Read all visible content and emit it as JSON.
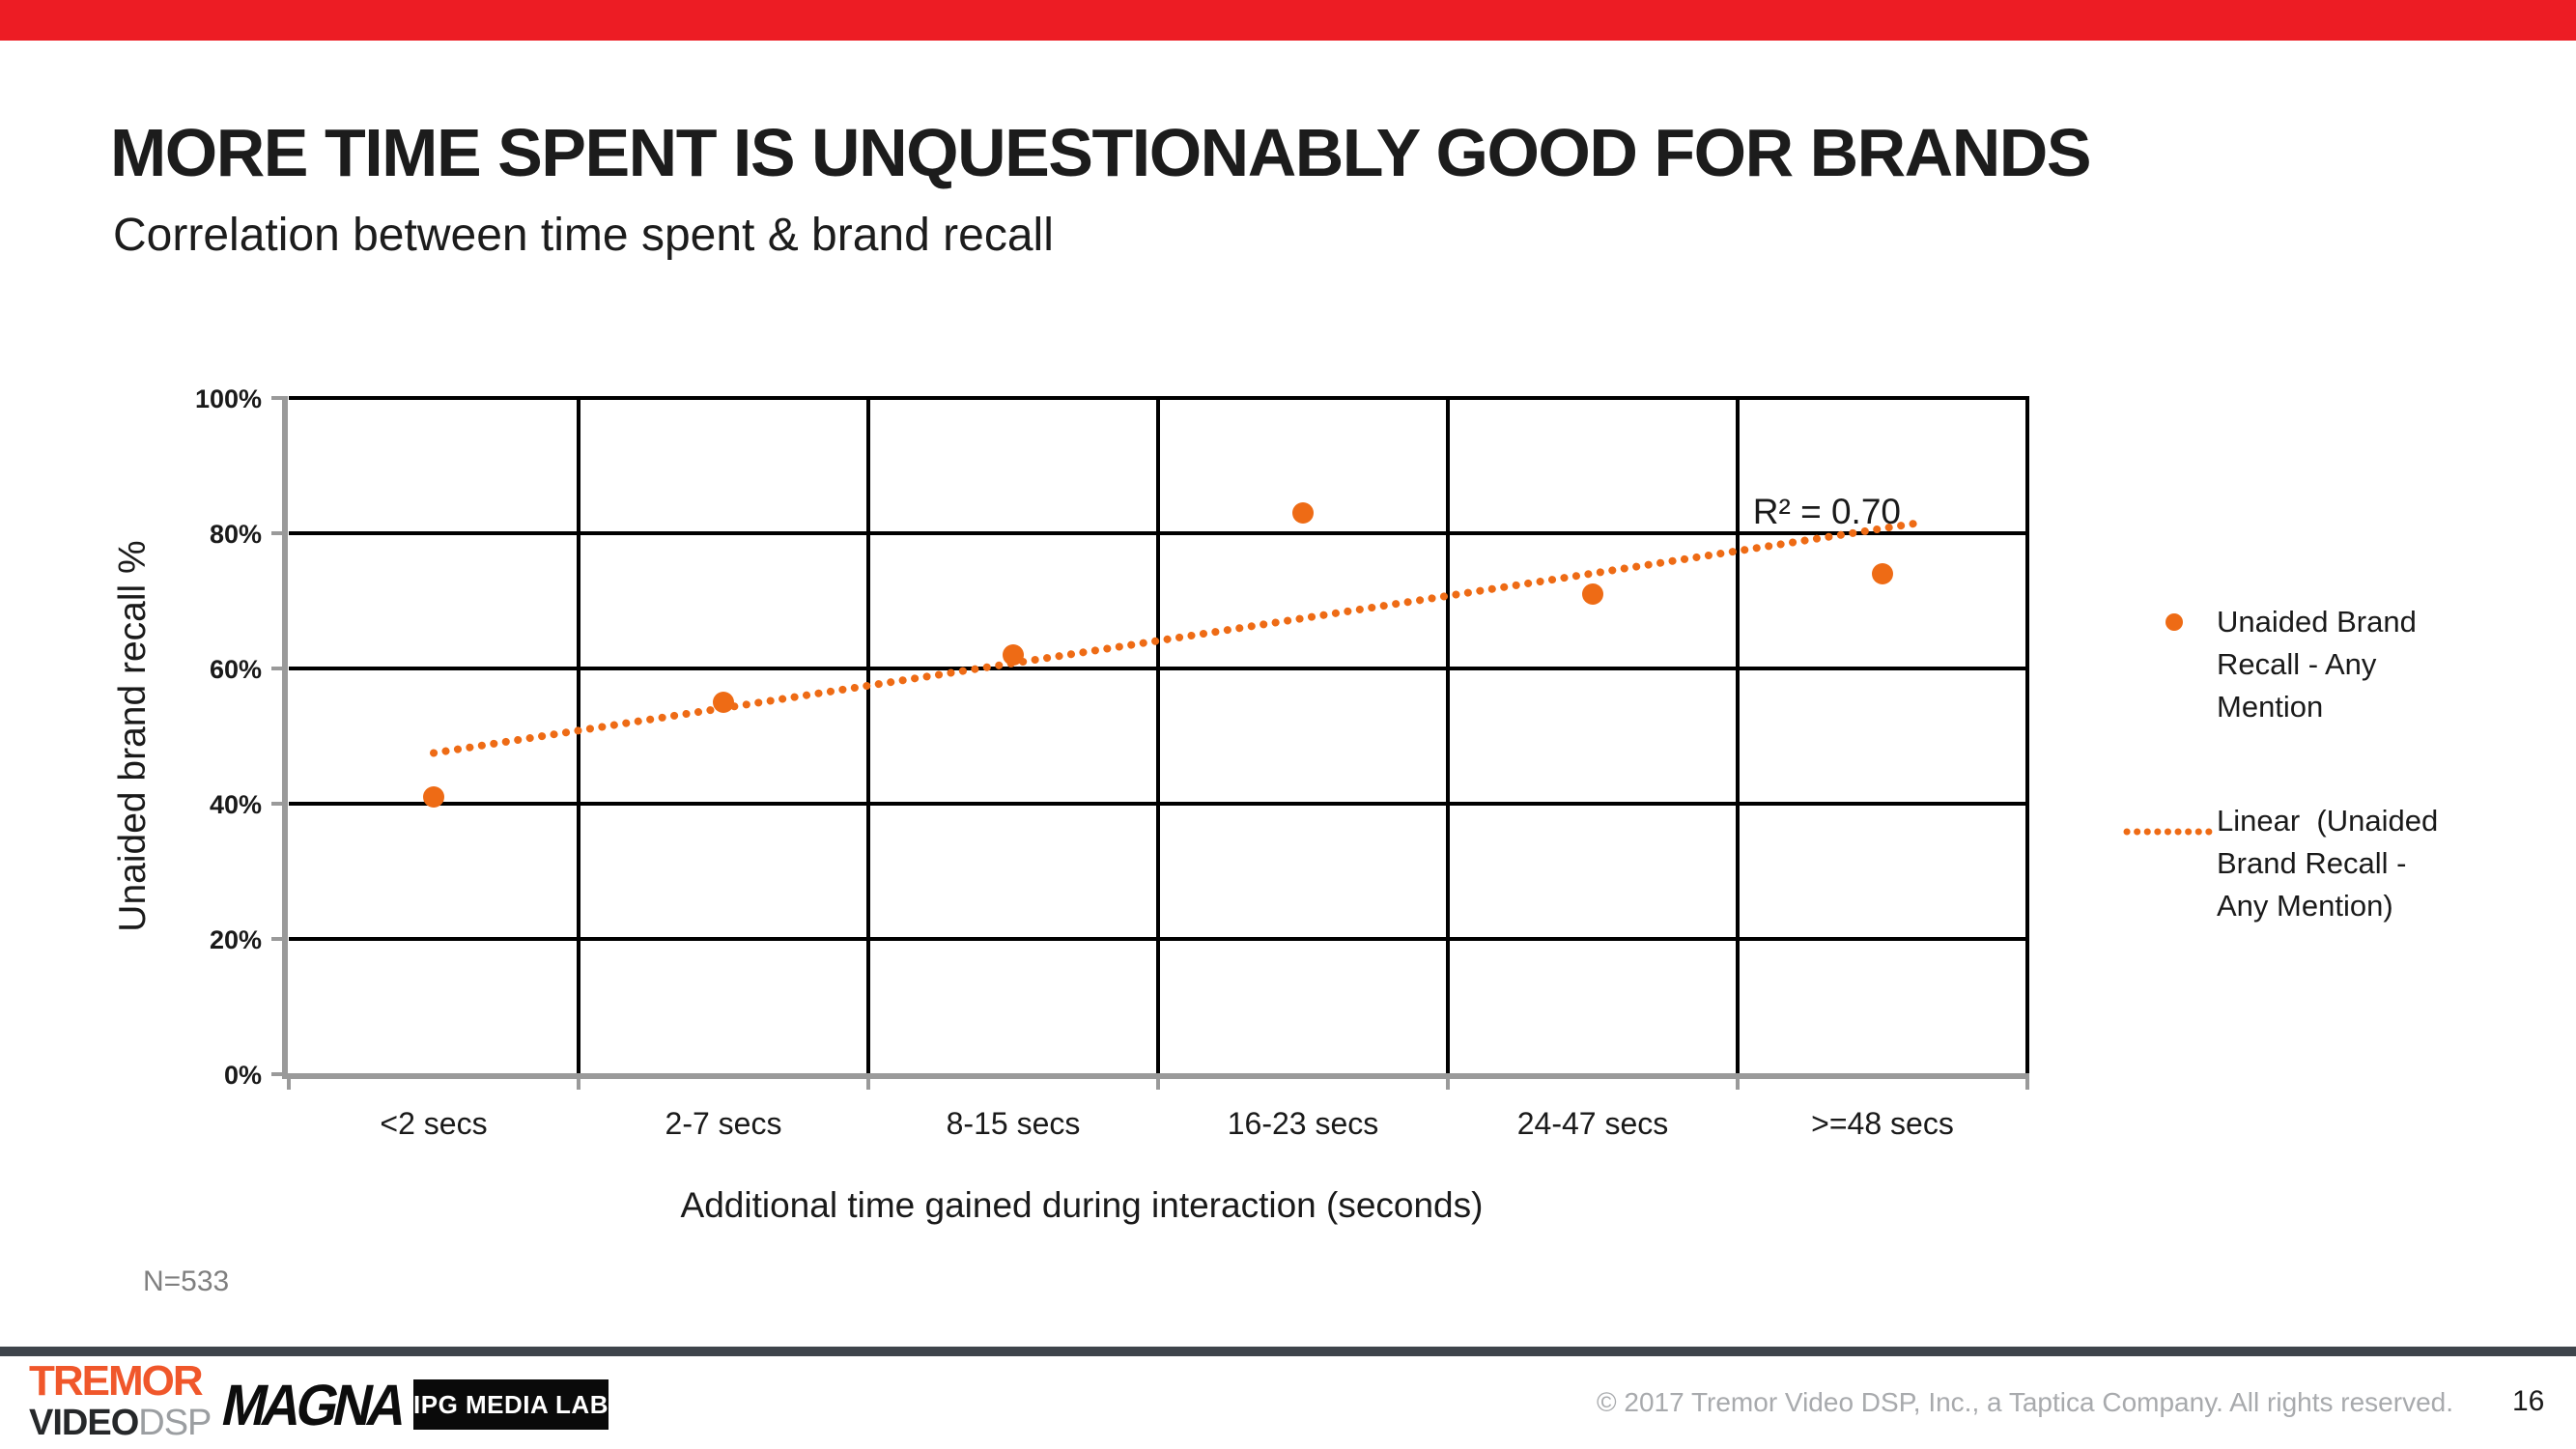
{
  "slide": {
    "title": "MORE TIME SPENT IS UNQUESTIONABLY GOOD FOR BRANDS",
    "subtitle": "Correlation between time spent & brand recall",
    "sample_note": "N=533",
    "copyright": "© 2017 Tremor Video DSP, Inc., a Taptica Company. All rights reserved.",
    "page_number": "16"
  },
  "legend": {
    "series_label": "Unaided Brand Recall - Any Mention",
    "trend_label": "Linear  (Unaided Brand Recall - Any Mention)"
  },
  "footer_logos": {
    "tremor_top": "TREMOR",
    "tremor_video": "VIDEO",
    "tremor_dsp": "DSP",
    "magna": "MAGNA",
    "ipg": "IPG MEDIA LAB"
  },
  "chart_data": {
    "type": "scatter",
    "title": "Correlation between time spent & brand recall",
    "categories": [
      "<2 secs",
      "2-7 secs",
      "8-15 secs",
      "16-23 secs",
      "24-47 secs",
      ">=48 secs"
    ],
    "series": [
      {
        "name": "Unaided Brand Recall - Any Mention",
        "values": [
          41,
          55,
          62,
          83,
          71,
          74
        ]
      }
    ],
    "trendline": {
      "type": "linear",
      "name": "Linear  (Unaided Brand Recall - Any Mention)",
      "start_value": 47.5,
      "end_value": 80.7,
      "r_squared": 0.7,
      "r2_annotation": "R² = 0.70"
    },
    "xlabel": "Additional time gained during interaction (seconds)",
    "ylabel": "Unaided brand recall %",
    "ylim": [
      0,
      100
    ],
    "ytick_labels": [
      "0%",
      "20%",
      "40%",
      "60%",
      "80%",
      "100%"
    ],
    "grid": true,
    "legend_position": "right"
  },
  "colors": {
    "accent": "#EE6B15",
    "top_bar": "#ED1C24",
    "gridline": "#000000",
    "axis_line": "#9a9a9a",
    "tremor_orange": "#F0572B",
    "footer_bar": "#3e444b"
  }
}
